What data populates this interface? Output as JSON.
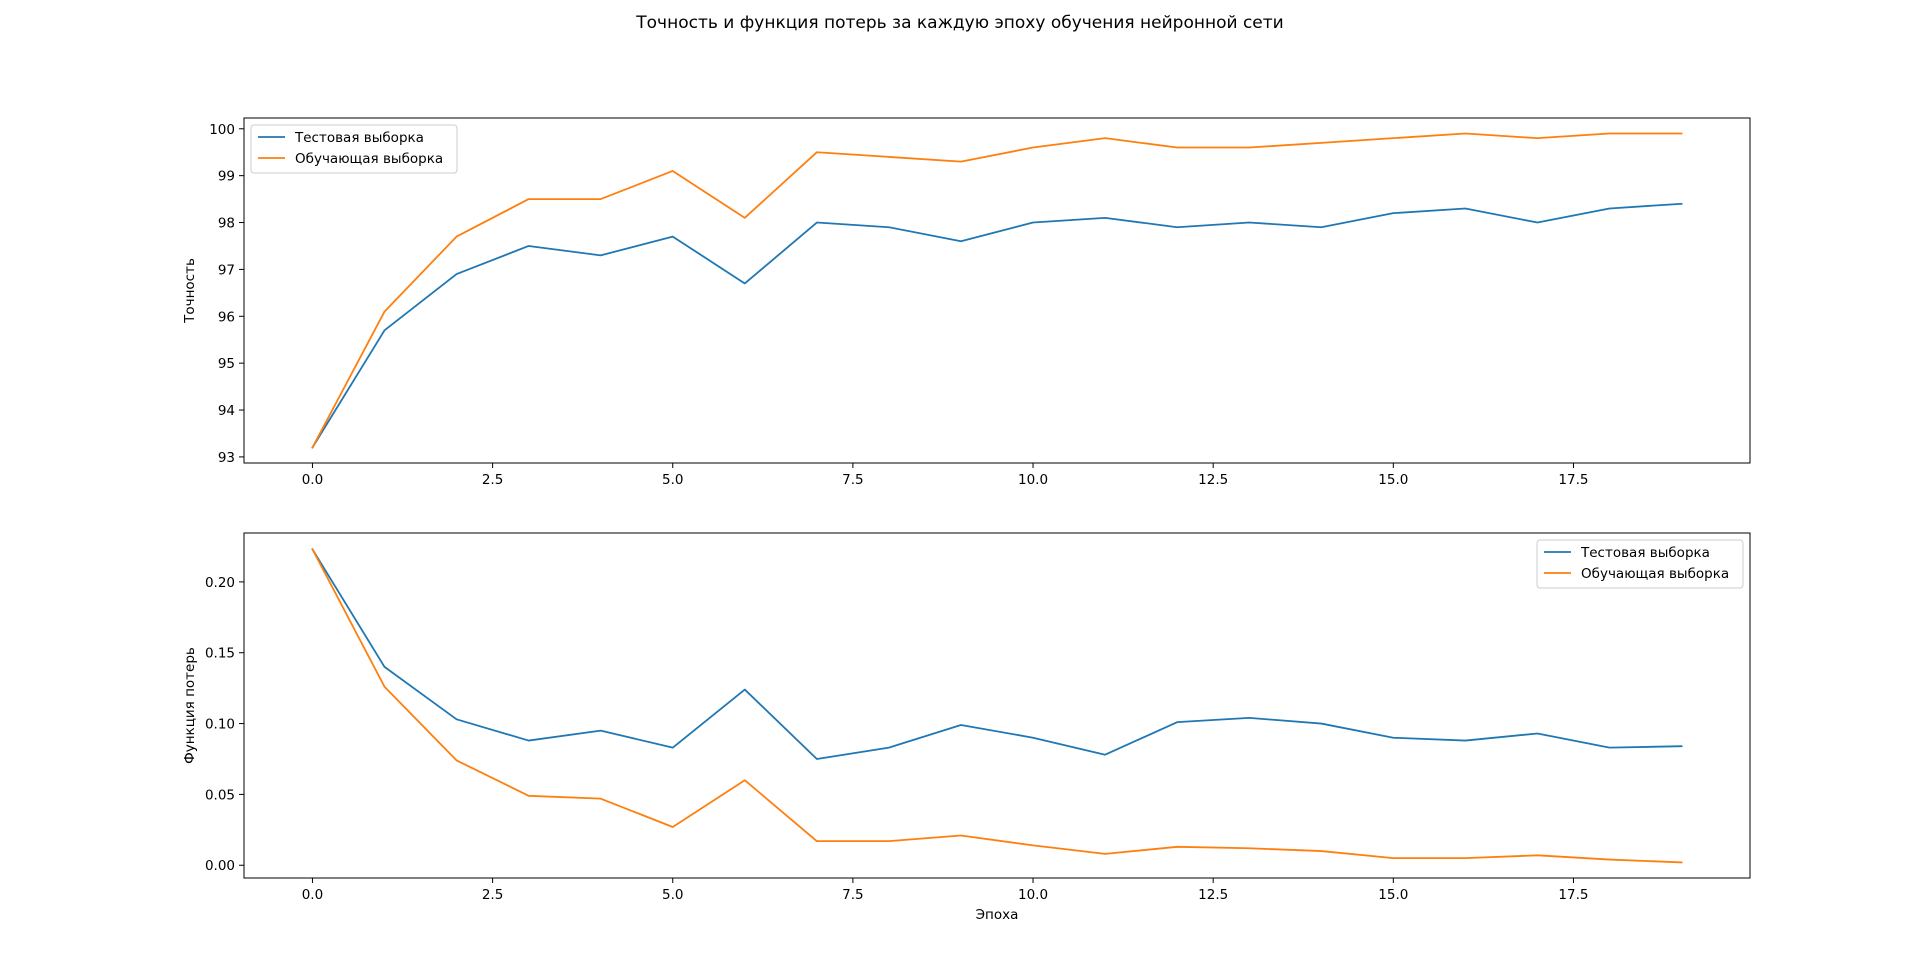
{
  "figure": {
    "title": "Точность и функция потерь за каждую эпоху обучения нейронной сети"
  },
  "colors": {
    "test": "#1f77b4",
    "train": "#ff7f0e"
  },
  "chart_data": [
    {
      "type": "line",
      "title": "",
      "xlabel": "",
      "ylabel": "Точность",
      "xlim": [
        -0.95,
        19.95
      ],
      "ylim": [
        92.87,
        100.23
      ],
      "xticks": [
        0.0,
        2.5,
        5.0,
        7.5,
        10.0,
        12.5,
        15.0,
        17.5
      ],
      "xtick_labels": [
        "0.0",
        "2.5",
        "5.0",
        "7.5",
        "10.0",
        "12.5",
        "15.0",
        "17.5"
      ],
      "yticks": [
        93,
        94,
        95,
        96,
        97,
        98,
        99,
        100
      ],
      "ytick_labels": [
        "93",
        "94",
        "95",
        "96",
        "97",
        "98",
        "99",
        "100"
      ],
      "grid": false,
      "legend": "upper-left",
      "x": [
        0,
        1,
        2,
        3,
        4,
        5,
        6,
        7,
        8,
        9,
        10,
        11,
        12,
        13,
        14,
        15,
        16,
        17,
        18,
        19
      ],
      "series": [
        {
          "name": "Тестовая выборка",
          "color_key": "test",
          "values": [
            93.2,
            95.7,
            96.9,
            97.5,
            97.3,
            97.7,
            96.7,
            98.0,
            97.9,
            97.6,
            98.0,
            98.1,
            97.9,
            98.0,
            97.9,
            98.2,
            98.3,
            98.0,
            98.3,
            98.4
          ]
        },
        {
          "name": "Обучающая выборка",
          "color_key": "train",
          "values": [
            93.2,
            96.1,
            97.7,
            98.5,
            98.5,
            99.1,
            98.1,
            99.5,
            99.4,
            99.3,
            99.6,
            99.8,
            99.6,
            99.6,
            99.7,
            99.8,
            99.9,
            99.8,
            99.9,
            99.9
          ]
        }
      ]
    },
    {
      "type": "line",
      "title": "",
      "xlabel": "Эпоха",
      "ylabel": "Функция потерь",
      "xlim": [
        -0.95,
        19.95
      ],
      "ylim": [
        -0.009,
        0.2345
      ],
      "xticks": [
        0.0,
        2.5,
        5.0,
        7.5,
        10.0,
        12.5,
        15.0,
        17.5
      ],
      "xtick_labels": [
        "0.0",
        "2.5",
        "5.0",
        "7.5",
        "10.0",
        "12.5",
        "15.0",
        "17.5"
      ],
      "yticks": [
        0.0,
        0.05,
        0.1,
        0.15,
        0.2
      ],
      "ytick_labels": [
        "0.00",
        "0.05",
        "0.10",
        "0.15",
        "0.20"
      ],
      "grid": false,
      "legend": "upper-right",
      "x": [
        0,
        1,
        2,
        3,
        4,
        5,
        6,
        7,
        8,
        9,
        10,
        11,
        12,
        13,
        14,
        15,
        16,
        17,
        18,
        19
      ],
      "series": [
        {
          "name": "Тестовая выборка",
          "color_key": "test",
          "values": [
            0.223,
            0.14,
            0.103,
            0.088,
            0.095,
            0.083,
            0.124,
            0.075,
            0.083,
            0.099,
            0.09,
            0.078,
            0.101,
            0.104,
            0.1,
            0.09,
            0.088,
            0.093,
            0.083,
            0.084
          ]
        },
        {
          "name": "Обучающая выборка",
          "color_key": "train",
          "values": [
            0.223,
            0.126,
            0.074,
            0.049,
            0.047,
            0.027,
            0.06,
            0.017,
            0.017,
            0.021,
            0.014,
            0.008,
            0.013,
            0.012,
            0.01,
            0.005,
            0.005,
            0.007,
            0.004,
            0.002
          ]
        }
      ]
    }
  ]
}
